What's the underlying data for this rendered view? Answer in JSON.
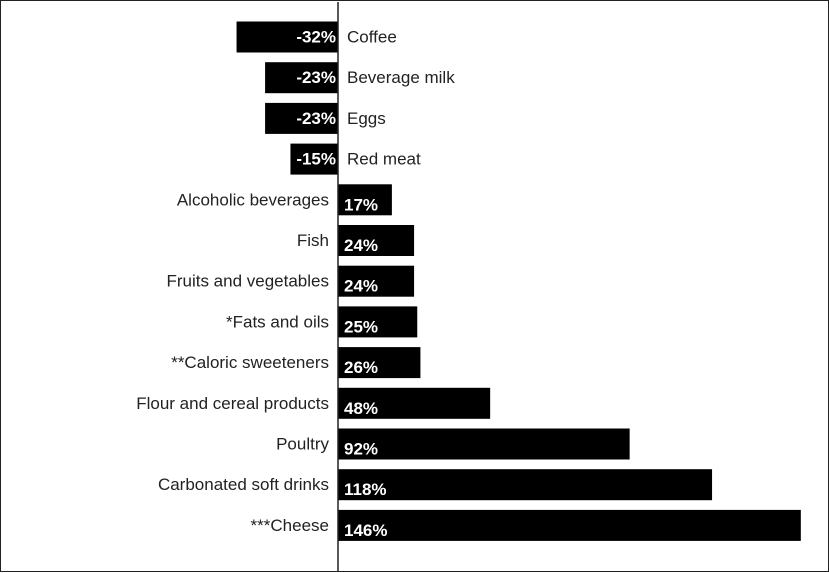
{
  "chart_data": {
    "type": "bar",
    "orientation": "horizontal",
    "categories": [
      "Coffee",
      "Beverage milk",
      "Eggs",
      "Red meat",
      "Alcoholic beverages",
      "Fish",
      "Fruits and vegetables",
      "*Fats and oils",
      "**Caloric sweeteners",
      "Flour and cereal products",
      "Poultry",
      "Carbonated soft drinks",
      "***Cheese"
    ],
    "values": [
      -32,
      -23,
      -23,
      -15,
      17,
      24,
      24,
      25,
      26,
      48,
      92,
      118,
      146
    ],
    "value_labels": [
      "-32%",
      "-23%",
      "-23%",
      "-15%",
      "17%",
      "24%",
      "24%",
      "25%",
      "26%",
      "48%",
      "92%",
      "118%",
      "146%"
    ],
    "title": "",
    "xlabel": "",
    "ylabel": "",
    "xlim": [
      -105,
      146
    ],
    "bar_color": "#000000",
    "label_color": "#ffffff",
    "grid": false,
    "legend": "none"
  }
}
